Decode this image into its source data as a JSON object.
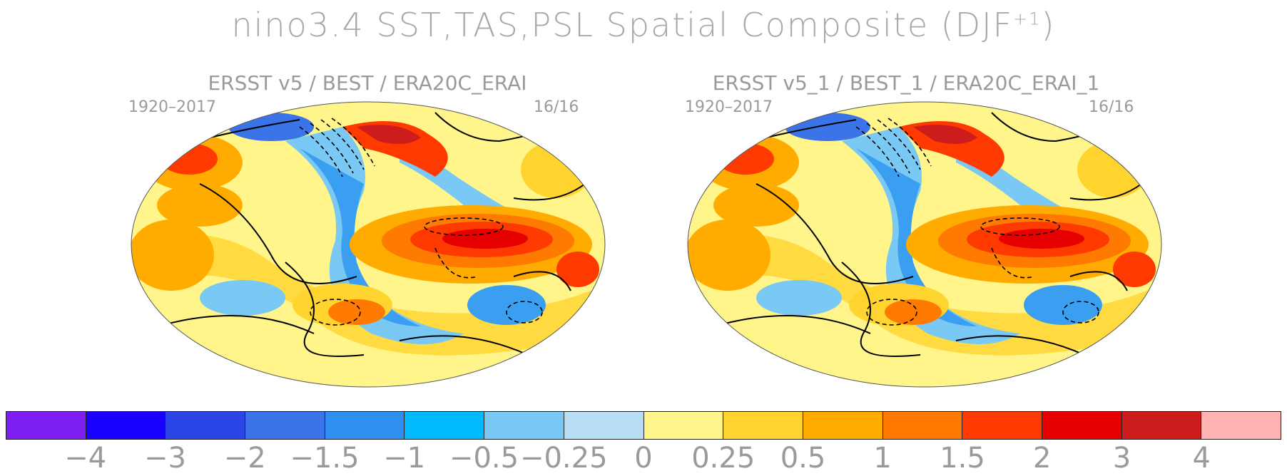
{
  "figure": {
    "title": "nino3.4 SST,TAS,PSL Spatial Composite (DJF",
    "title_sup": "+1",
    "title_close": ")"
  },
  "panels": [
    {
      "title": "ERSST v5 / BEST / ERA20C_ERAI",
      "period": "1920–2017",
      "count": "16/16"
    },
    {
      "title": "ERSST v5_1 / BEST_1 / ERA20C_ERAI_1",
      "period": "1920–2017",
      "count": "16/16"
    }
  ],
  "colorbar": {
    "colors": [
      "#7d1ff0",
      "#1a00ff",
      "#2b45e6",
      "#3a74e8",
      "#2f8ff0",
      "#00b9ff",
      "#7ac8f4",
      "#b7ddf3",
      "#fff58a",
      "#ffd42e",
      "#ffab00",
      "#ff7a00",
      "#ff3a00",
      "#e60000",
      "#cc1c1c",
      "#ffb3b3"
    ],
    "ticks": [
      "−4",
      "−3",
      "−2",
      "−1.5",
      "−1",
      "−0.5",
      "−0.25",
      "0",
      "0.25",
      "0.5",
      "1",
      "1.5",
      "2",
      "3",
      "4"
    ]
  }
}
